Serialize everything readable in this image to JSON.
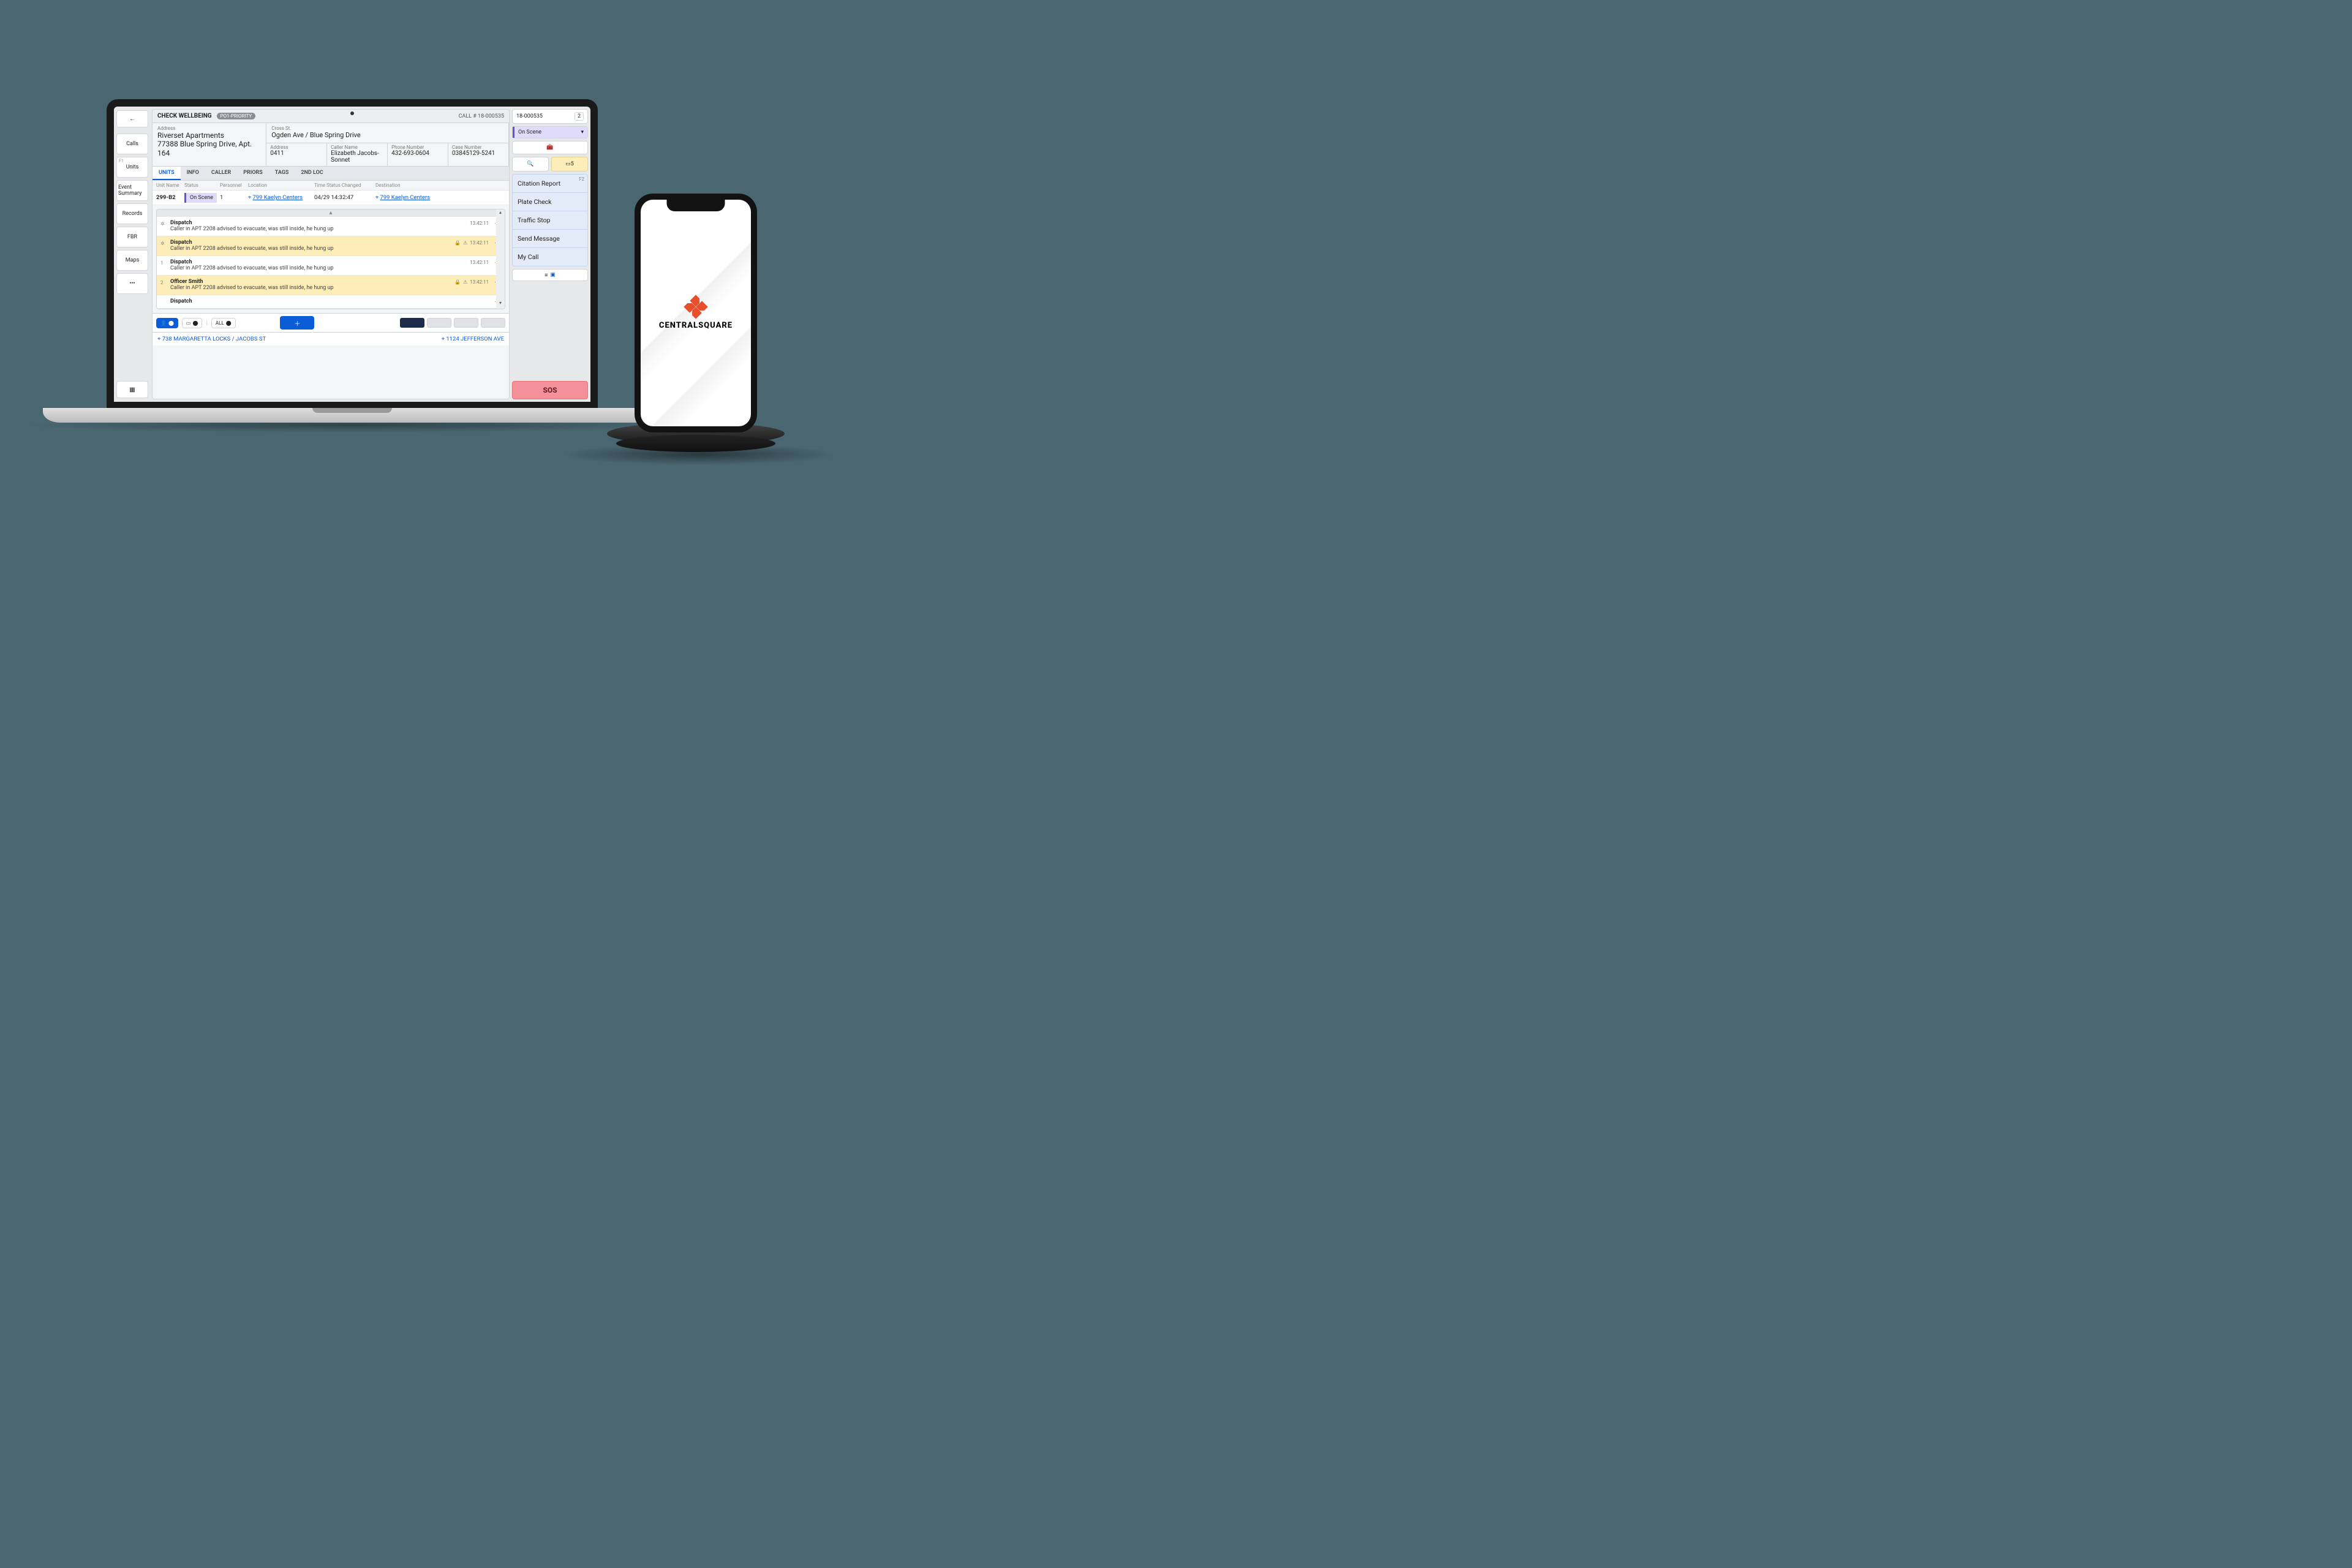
{
  "sidebar": {
    "back_icon": "←",
    "items": [
      {
        "label": "Calls"
      },
      {
        "label": "Units",
        "fkey": "F1"
      },
      {
        "label": "Event Summary"
      },
      {
        "label": "Records"
      },
      {
        "label": "FBR"
      },
      {
        "label": "Maps"
      },
      {
        "label": "•••"
      }
    ]
  },
  "header": {
    "title": "CHECK WELLBEING",
    "priority": "PO1-PRIORITY",
    "call_label": "CALL #",
    "call_num": "18-000535"
  },
  "address": {
    "label": "Address",
    "name": "Riverset Apartments",
    "line": "77388 Blue Spring Drive, Apt. 164"
  },
  "cross": {
    "label": "Cross St.",
    "value": "Ogden Ave / Blue Spring Drive"
  },
  "addr_code": {
    "label": "Address",
    "value": "0411"
  },
  "caller": {
    "label": "Caller Name",
    "value": "Elizabeth Jacobs-Sonnet"
  },
  "phone": {
    "label": "Phone Number",
    "value": "432-693-0604"
  },
  "case": {
    "label": "Case Number",
    "value": "03845129-5241"
  },
  "tabs": [
    "UNITS",
    "INFO",
    "CALLER",
    "PRIORS",
    "TAGS",
    "2ND LOC"
  ],
  "columns": {
    "unit": "Unit Name",
    "status": "Status",
    "personnel": "Personnel",
    "location": "Location",
    "time": "Time Status Changed",
    "dest": "Destination"
  },
  "row": {
    "unit": "299-B2",
    "status": "On Scene",
    "personnel": "1",
    "location": "799 Kaelyn Centers",
    "time": "04/29 14:32:47",
    "dest": "799 Kaelyn Centers"
  },
  "logs": [
    {
      "mark": "✲",
      "who": "Dispatch",
      "body": "Caller in APT 2208 advised to evacuate, was still inside, he hung up",
      "ts": "13:42:11",
      "hl": false,
      "icons": false
    },
    {
      "mark": "✲",
      "who": "Dispatch",
      "body": "Caller in APT 2208 advised to evacuate, was still inside, he hung up",
      "ts": "13:42:11",
      "hl": true,
      "icons": true
    },
    {
      "mark": "1",
      "who": "Dispatch",
      "body": "Caller in APT 2208 advised to evacuate, was still inside, he hung up",
      "ts": "13:42:11",
      "hl": false,
      "icons": false
    },
    {
      "mark": "2",
      "who": "Officer Smith",
      "body": "Caller in APT 2208 advised to evacuate, was still inside, he hung up",
      "ts": "13:42:11",
      "hl": true,
      "icons": true
    },
    {
      "mark": "",
      "who": "Dispatch",
      "body": "",
      "ts": "",
      "hl": false,
      "icons": false
    }
  ],
  "chips": {
    "all_label": "ALL"
  },
  "loc_bar": {
    "left": "738 MARGARETTA LOCKS / JACOBS ST",
    "right": "1124 JEFFERSON AVE"
  },
  "right": {
    "call_num": "18-000535",
    "count": "2",
    "status": "On Scene",
    "badge_count": "5",
    "fkey": "F2",
    "quick": [
      "Citation Report",
      "Plate Check",
      "Traffic Stop",
      "Send Message",
      "My Call"
    ],
    "sos": "SOS"
  },
  "brand": "CENTRALSQUARE"
}
